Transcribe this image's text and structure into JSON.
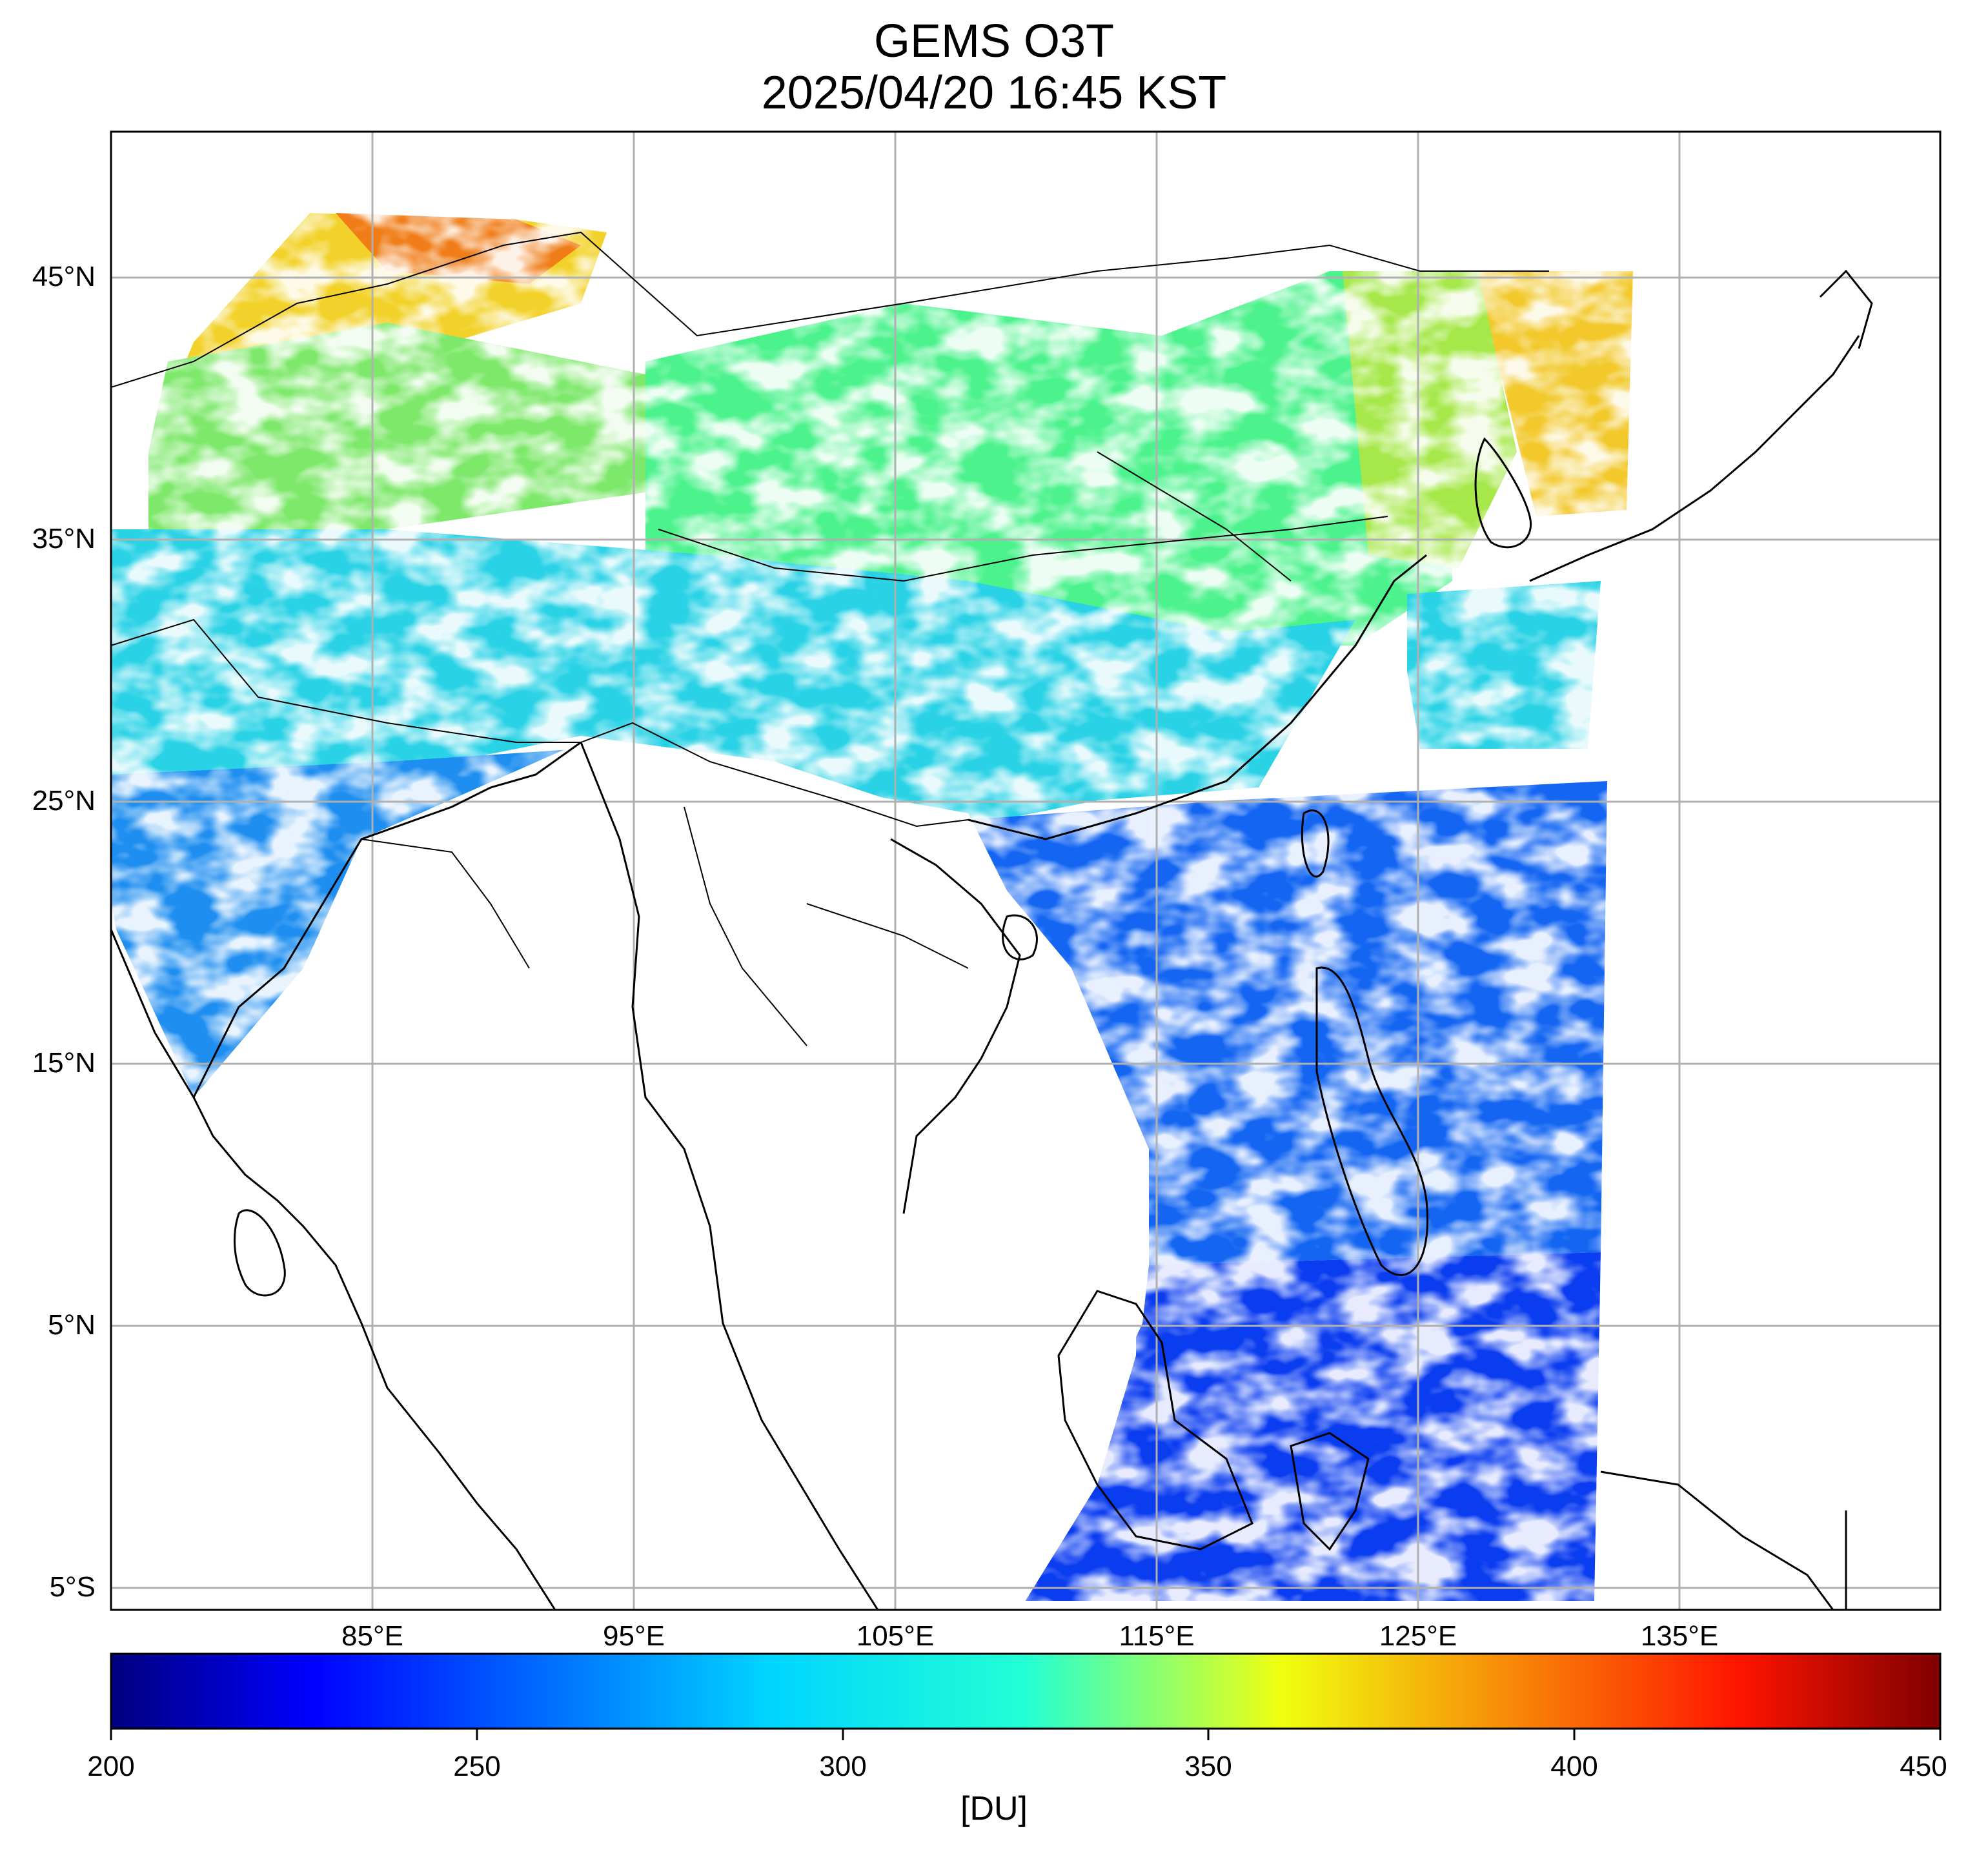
{
  "title": "GEMS O3T",
  "subtitle": "2025/04/20 16:45 KST",
  "map": {
    "lat_ticks": [
      "45°N",
      "35°N",
      "25°N",
      "15°N",
      "5°N",
      "5°S"
    ],
    "lon_ticks": [
      "85°E",
      "95°E",
      "105°E",
      "115°E",
      "125°E",
      "135°E"
    ],
    "lon_range": [
      75,
      145
    ],
    "lat_range": [
      -6,
      50.5
    ],
    "grid": true,
    "field_colors": {
      "north_china": "#4cf28c",
      "korea_plume": "#f2c82a",
      "central_asia": "#f07d18",
      "tibet": "#2ad2e6",
      "india": "#1e8ef0",
      "ocean_subtropic": "#1466f2",
      "tropics": "#0a3cf0"
    }
  },
  "colorbar": {
    "min": 200,
    "max": 450,
    "ticks": [
      "200",
      "250",
      "300",
      "350",
      "400",
      "450"
    ],
    "unit": "[DU]",
    "colormap": "jet"
  }
}
